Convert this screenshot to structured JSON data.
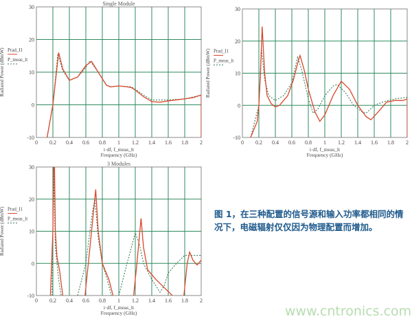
{
  "caption": "图 1，在三种配置的信号源和输入功率都相同的情况下，电磁辐射仅仅因为物理配置而增加。",
  "watermark": "www.cntronics.com",
  "colors": {
    "solid": "#d9472b",
    "dashed": "#3a7a5a",
    "grid": "#2e8a5e",
    "frame": "#8a8a8a"
  },
  "chart_data": [
    {
      "type": "line",
      "title": "Single Module",
      "xlabel": "i·df, f_meas_lt",
      "xlabel2": "Frequency (GHz)",
      "ylabel": "Radiated Power (dBmW)",
      "xlim": [
        0,
        2
      ],
      "ylim": [
        -10,
        30
      ],
      "xticks": [
        "0",
        "0.2",
        "0.4",
        "0.6",
        "0.8",
        "1",
        "1.2",
        "1.4",
        "1.6",
        "1.8",
        "2"
      ],
      "yticks": [
        "-10",
        "0",
        "10",
        "20",
        "30"
      ],
      "grid": true,
      "legend": [
        "Prad_I1",
        "P_meas_lt"
      ],
      "series": [
        {
          "name": "Prad_I1",
          "style": "solid",
          "segments": [
            [
              [
                0.13,
                -10
              ],
              [
                0.2,
                0
              ],
              [
                0.27,
                16
              ],
              [
                0.32,
                11
              ],
              [
                0.4,
                7.5
              ],
              [
                0.5,
                8.5
              ],
              [
                0.6,
                12
              ],
              [
                0.67,
                13.3
              ],
              [
                0.75,
                10
              ],
              [
                0.85,
                6
              ],
              [
                0.9,
                5.5
              ],
              [
                1.0,
                5.8
              ],
              [
                1.1,
                5.5
              ],
              [
                1.15,
                5.3
              ],
              [
                1.2,
                4.5
              ],
              [
                1.3,
                2.5
              ],
              [
                1.4,
                1
              ],
              [
                1.5,
                0.8
              ],
              [
                1.6,
                1.2
              ],
              [
                1.8,
                1.8
              ],
              [
                1.9,
                2.2
              ],
              [
                2.0,
                3
              ],
              [
                2.0,
                -10
              ]
            ]
          ]
        },
        {
          "name": "P_meas_lt",
          "style": "dashed",
          "segments": [
            [
              [
                0.13,
                -10
              ],
              [
                0.2,
                0
              ],
              [
                0.26,
                15.5
              ],
              [
                0.32,
                10.5
              ],
              [
                0.4,
                7.5
              ],
              [
                0.5,
                8.5
              ],
              [
                0.6,
                11.5
              ],
              [
                0.65,
                13.5
              ],
              [
                0.75,
                10
              ],
              [
                0.85,
                6
              ],
              [
                0.9,
                5.5
              ],
              [
                1.0,
                5.8
              ],
              [
                1.15,
                5.5
              ],
              [
                1.2,
                4.8
              ],
              [
                1.3,
                3
              ],
              [
                1.4,
                1.5
              ],
              [
                1.5,
                1.5
              ],
              [
                1.6,
                1.5
              ],
              [
                1.8,
                1.8
              ],
              [
                2.0,
                3
              ]
            ]
          ]
        }
      ]
    },
    {
      "type": "line",
      "title": "",
      "xlabel": "i·df, f_meas_lt",
      "xlabel2": "Frequency (GHz)",
      "ylabel": "Radiated Power (dBmW)",
      "xlim": [
        0,
        2
      ],
      "ylim": [
        -10,
        30
      ],
      "xticks": [
        "0",
        "0.2",
        "0.4",
        "0.6",
        "0.8",
        "1",
        "1.2",
        "1.4",
        "1.6",
        "1.8",
        "2"
      ],
      "yticks": [
        "-10",
        "0",
        "10",
        "20",
        "30"
      ],
      "grid": true,
      "legend": [
        "Prad_I1",
        "P_meas_lt"
      ],
      "series": [
        {
          "name": "Prad_I1",
          "style": "solid",
          "segments": [
            [
              [
                0.1,
                -10
              ],
              [
                0.18,
                -5
              ],
              [
                0.2,
                0
              ],
              [
                0.22,
                10
              ],
              [
                0.24,
                24.5
              ],
              [
                0.27,
                10
              ],
              [
                0.3,
                3
              ],
              [
                0.35,
                0.5
              ],
              [
                0.4,
                -0.5
              ],
              [
                0.45,
                0
              ],
              [
                0.55,
                3
              ],
              [
                0.62,
                8
              ],
              [
                0.68,
                14
              ],
              [
                0.7,
                15.5
              ],
              [
                0.75,
                11
              ],
              [
                0.8,
                5
              ],
              [
                0.88,
                -2
              ],
              [
                0.94,
                -5
              ],
              [
                1.0,
                -3
              ],
              [
                1.1,
                3
              ],
              [
                1.2,
                7.5
              ],
              [
                1.3,
                5
              ],
              [
                1.4,
                0
              ],
              [
                1.5,
                -3.5
              ],
              [
                1.56,
                -4.5
              ],
              [
                1.65,
                -2
              ],
              [
                1.75,
                1
              ],
              [
                1.85,
                1.5
              ],
              [
                1.95,
                1.5
              ],
              [
                2.0,
                2
              ],
              [
                2.0,
                -10
              ]
            ]
          ]
        },
        {
          "name": "P_meas_lt",
          "style": "dashed",
          "segments": [
            [
              [
                0.1,
                -10
              ],
              [
                0.2,
                0
              ],
              [
                0.23,
                18
              ],
              [
                0.27,
                8
              ],
              [
                0.32,
                3
              ],
              [
                0.4,
                1.5
              ],
              [
                0.5,
                3
              ],
              [
                0.6,
                7
              ],
              [
                0.67,
                15
              ],
              [
                0.72,
                11
              ],
              [
                0.8,
                2
              ],
              [
                0.86,
                -2.5
              ],
              [
                0.92,
                -1
              ],
              [
                1.0,
                3
              ],
              [
                1.1,
                6
              ],
              [
                1.15,
                6.5
              ],
              [
                1.25,
                4
              ],
              [
                1.35,
                0
              ],
              [
                1.45,
                -2
              ],
              [
                1.5,
                -2.5
              ],
              [
                1.6,
                0
              ],
              [
                1.7,
                1
              ],
              [
                1.85,
                2
              ],
              [
                2.0,
                2.5
              ]
            ]
          ]
        }
      ]
    },
    {
      "type": "line",
      "title": "3 Modules",
      "xlabel": "i·df, f_meas_lt",
      "xlabel2": "Frequency (GHz)",
      "ylabel": "Radiated Power (dBmW)",
      "xlim": [
        0,
        2
      ],
      "ylim": [
        -10,
        30
      ],
      "xticks": [
        "0",
        "0.2",
        "0.4",
        "0.6",
        "0.8",
        "1",
        "1.2",
        "1.4",
        "1.6",
        "1.8",
        "2"
      ],
      "yticks": [
        "-10",
        "0",
        "10",
        "20",
        "30"
      ],
      "grid": true,
      "legend": [
        "Prad_I1",
        "P_meas_lt"
      ],
      "series": [
        {
          "name": "Prad_I1",
          "style": "solid",
          "segments": [
            [
              [
                0.17,
                -10
              ],
              [
                0.2,
                10
              ],
              [
                0.21,
                30
              ],
              [
                0.22,
                30
              ],
              [
                0.23,
                10
              ],
              [
                0.25,
                2
              ],
              [
                0.28,
                -2
              ],
              [
                0.32,
                -10
              ]
            ],
            [
              [
                0.59,
                -10
              ],
              [
                0.65,
                5
              ],
              [
                0.72,
                23
              ],
              [
                0.75,
                10
              ],
              [
                0.8,
                0
              ],
              [
                0.88,
                -5
              ],
              [
                0.93,
                -10
              ]
            ],
            [
              [
                1.18,
                -10
              ],
              [
                1.22,
                0
              ],
              [
                1.27,
                14
              ],
              [
                1.3,
                5
              ],
              [
                1.35,
                -2
              ],
              [
                1.45,
                -5
              ],
              [
                1.55,
                -7.5
              ],
              [
                1.65,
                -10
              ]
            ],
            [
              [
                1.79,
                -10
              ],
              [
                1.83,
                0
              ],
              [
                1.86,
                3.5
              ],
              [
                1.9,
                1
              ],
              [
                1.95,
                -0.5
              ],
              [
                2.0,
                1
              ]
            ]
          ]
        },
        {
          "name": "P_meas_lt",
          "style": "dashed",
          "segments": [
            [
              [
                0.19,
                -10
              ],
              [
                0.21,
                30
              ],
              [
                0.23,
                5
              ],
              [
                0.27,
                -5
              ],
              [
                0.3,
                -10
              ]
            ],
            [
              [
                0.5,
                -10
              ],
              [
                0.6,
                0
              ],
              [
                0.68,
                16
              ],
              [
                0.71,
                20
              ],
              [
                0.75,
                8
              ],
              [
                0.8,
                0
              ],
              [
                0.86,
                -5
              ],
              [
                0.91,
                -10
              ]
            ],
            [
              [
                1.0,
                -10
              ],
              [
                1.1,
                0
              ],
              [
                1.2,
                9.5
              ],
              [
                1.25,
                6
              ],
              [
                1.3,
                0
              ],
              [
                1.4,
                -5
              ],
              [
                1.5,
                -9
              ],
              [
                1.55,
                -7
              ],
              [
                1.6,
                -3
              ],
              [
                1.7,
                0
              ],
              [
                1.8,
                2.5
              ],
              [
                2.0,
                2.5
              ]
            ]
          ]
        }
      ]
    }
  ]
}
